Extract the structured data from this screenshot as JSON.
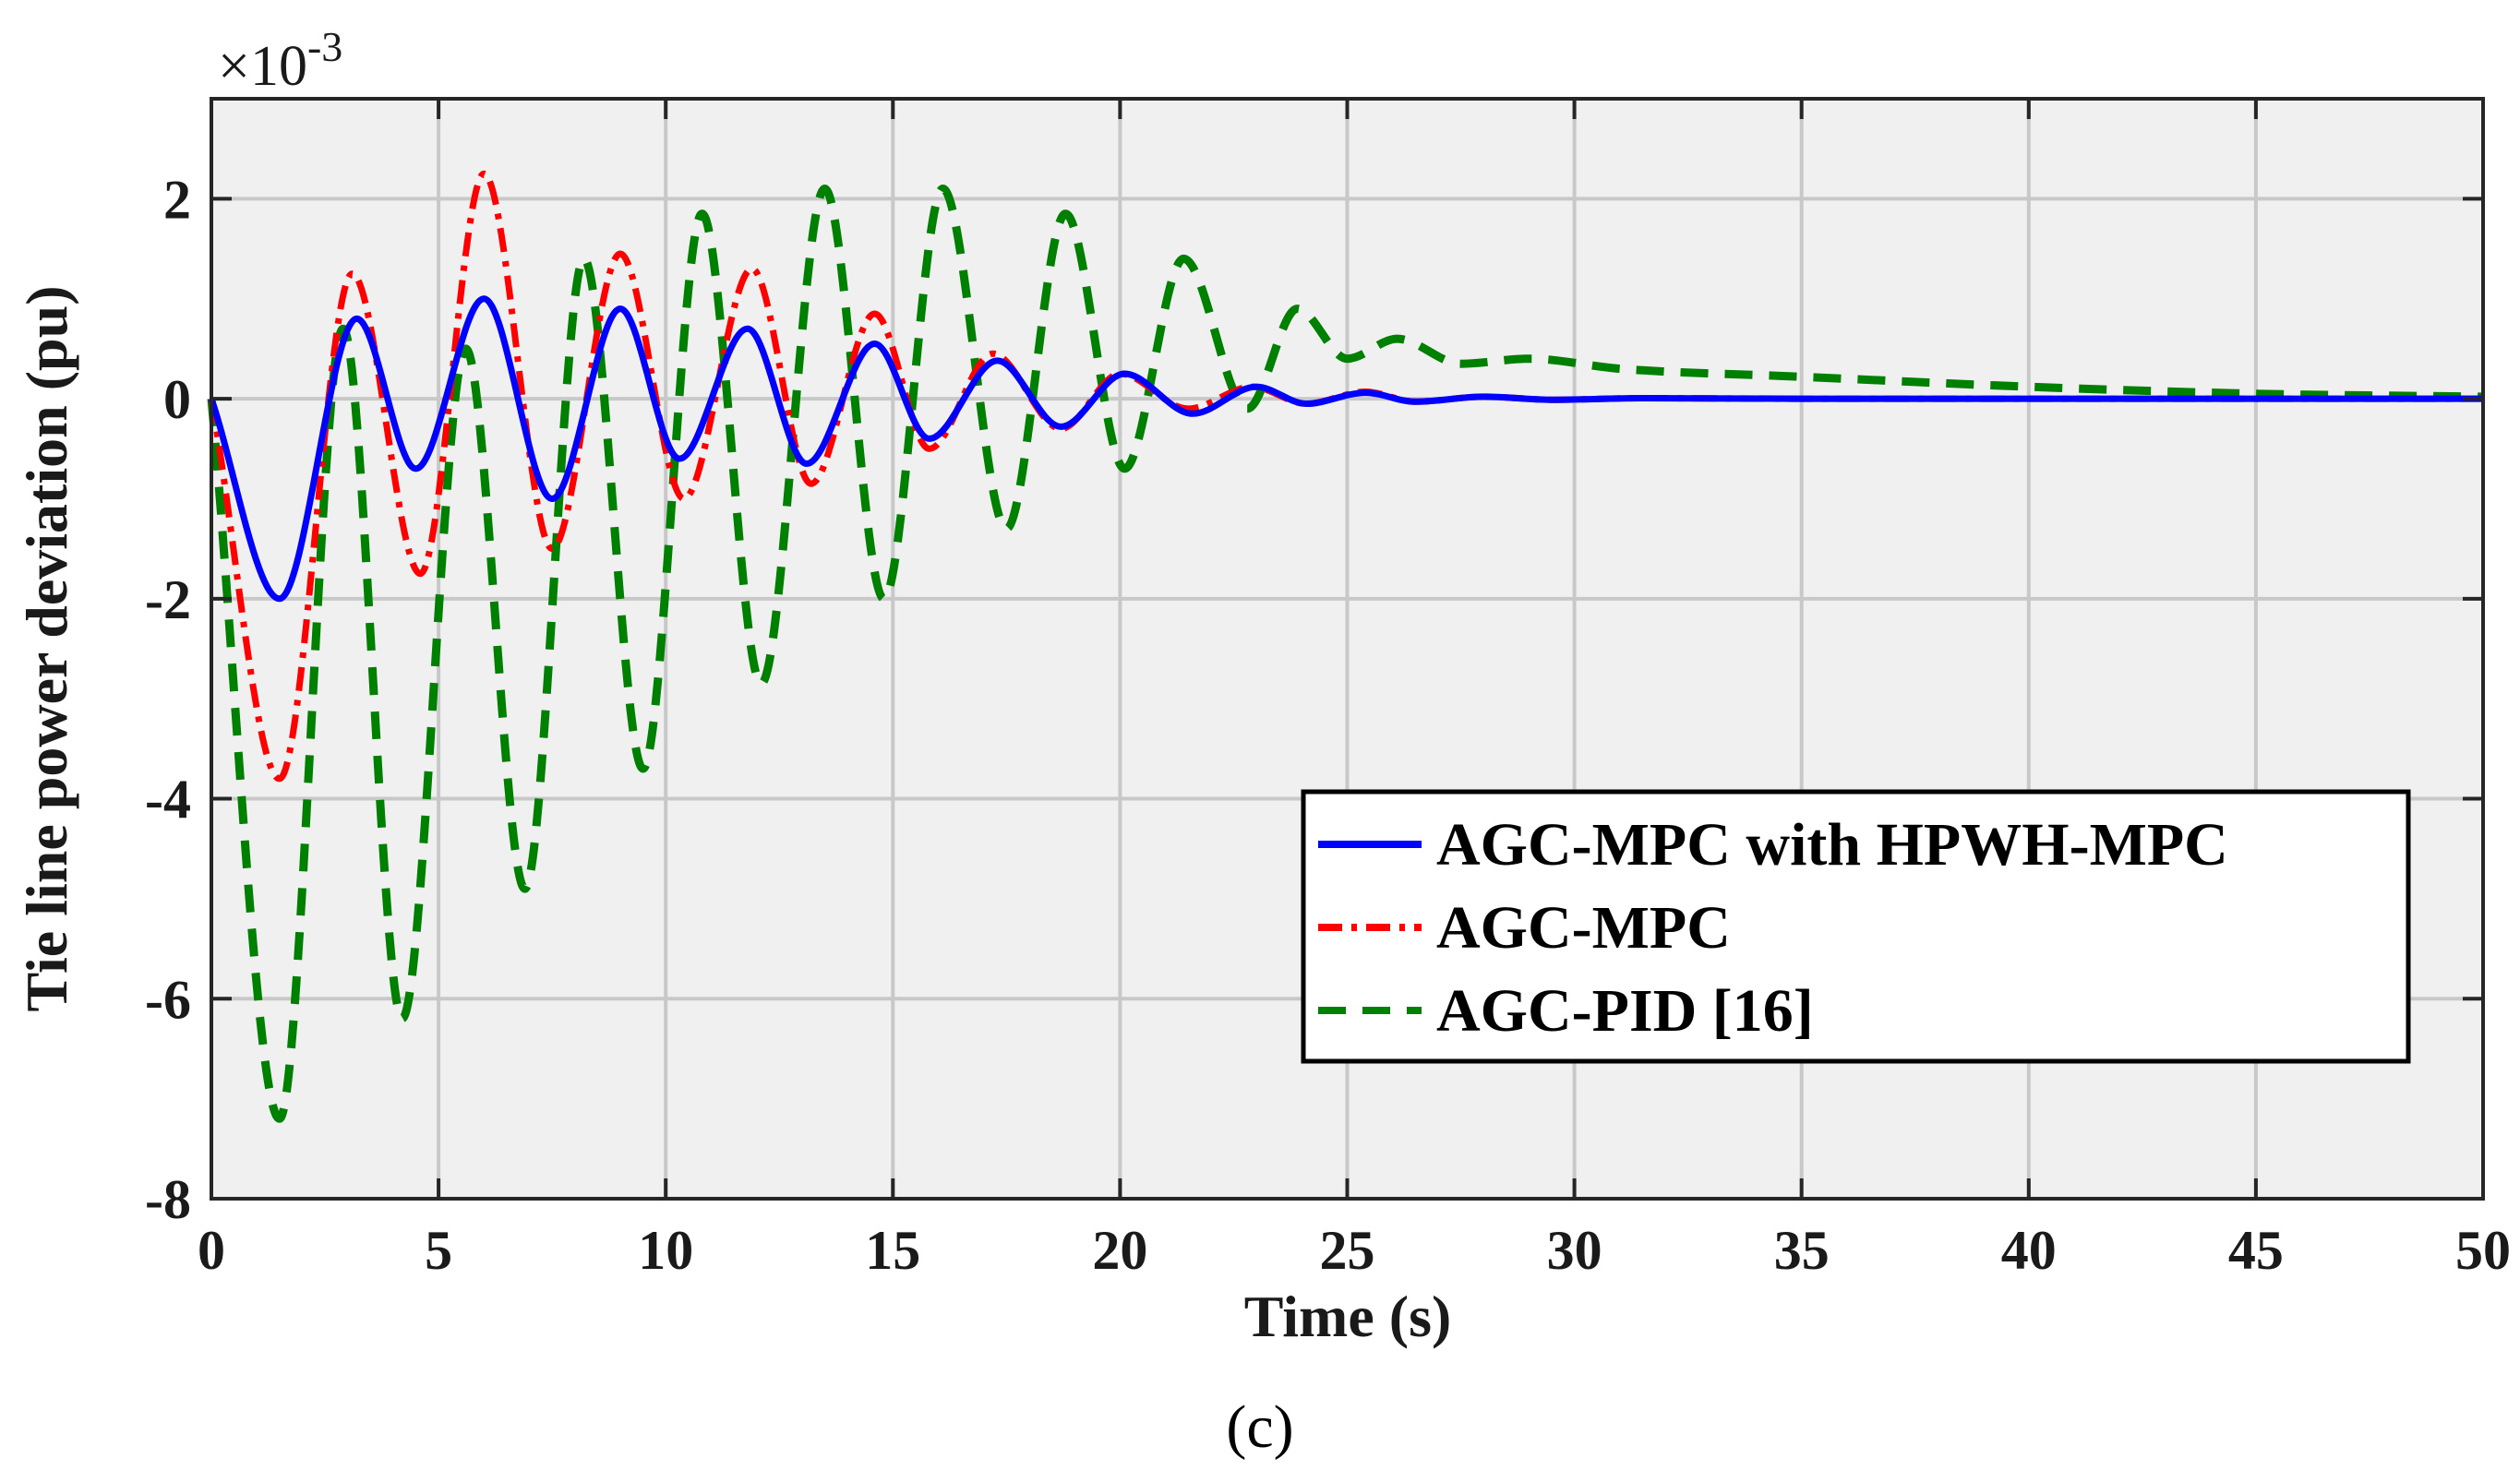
{
  "chart_data": {
    "type": "line",
    "title": "",
    "xlabel": "Time (s)",
    "ylabel": "Tie line power deviation (pu)",
    "xlim": [
      0,
      50
    ],
    "ylim": [
      -8,
      3
    ],
    "exponent_label": "×10^-3",
    "exponent_base": "×10",
    "exponent_power": "-3",
    "xticks": [
      0,
      5,
      10,
      15,
      20,
      25,
      30,
      35,
      40,
      45,
      50
    ],
    "yticks": [
      -8,
      -6,
      -4,
      -2,
      0,
      2
    ],
    "xtick_labels": [
      "0",
      "5",
      "10",
      "15",
      "20",
      "25",
      "30",
      "35",
      "40",
      "45",
      "50"
    ],
    "ytick_labels": [
      "-8",
      "-6",
      "-4",
      "-2",
      "0",
      "2"
    ],
    "grid": true,
    "legend_position": "lower-right",
    "series": [
      {
        "name": "AGC-MPC with HPWH-MPC",
        "color": "#0000ff",
        "style": "solid",
        "x": [
          0,
          1.5,
          3.2,
          4.5,
          6.0,
          7.5,
          9.0,
          10.3,
          11.8,
          13.1,
          14.6,
          15.8,
          17.3,
          18.7,
          20.1,
          21.6,
          23.0,
          24.1,
          25.4,
          26.5,
          28.0,
          29.5,
          31.5,
          35,
          40,
          45,
          50
        ],
        "y": [
          0,
          -2.0,
          0.8,
          -0.7,
          1.0,
          -1.0,
          0.9,
          -0.6,
          0.7,
          -0.65,
          0.55,
          -0.4,
          0.38,
          -0.28,
          0.25,
          -0.15,
          0.12,
          -0.05,
          0.06,
          -0.03,
          0.02,
          -0.01,
          0.005,
          0,
          0,
          0,
          0
        ]
      },
      {
        "name": "AGC-MPC",
        "color": "#ff0000",
        "style": "dashdot",
        "x": [
          0,
          1.5,
          3.1,
          4.6,
          6.0,
          7.5,
          9.0,
          10.4,
          11.9,
          13.2,
          14.6,
          15.8,
          17.2,
          18.7,
          20.0,
          21.5,
          22.9,
          24.1,
          25.4,
          26.5,
          28.0,
          29.5,
          31.5,
          35,
          40,
          45,
          50
        ],
        "y": [
          0,
          -3.8,
          1.25,
          -1.75,
          2.25,
          -1.5,
          1.45,
          -1.0,
          1.3,
          -0.85,
          0.85,
          -0.5,
          0.45,
          -0.3,
          0.25,
          -0.1,
          0.12,
          -0.05,
          0.07,
          -0.03,
          0.02,
          -0.01,
          0.005,
          0,
          0,
          0,
          0
        ]
      },
      {
        "name": "AGC-PID [16]",
        "color": "#008000",
        "style": "dashed",
        "x": [
          0,
          1.5,
          2.9,
          4.2,
          5.6,
          6.9,
          8.2,
          9.5,
          10.8,
          12.1,
          13.5,
          14.8,
          16.1,
          17.5,
          18.8,
          20.1,
          21.4,
          22.8,
          23.9,
          25.0,
          26.1,
          27.5,
          29.0,
          31.0,
          35,
          40,
          45,
          50
        ],
        "y": [
          0,
          -7.2,
          0.7,
          -6.2,
          0.5,
          -4.9,
          1.4,
          -3.7,
          1.85,
          -2.85,
          2.1,
          -2.0,
          2.1,
          -1.3,
          1.85,
          -0.7,
          1.4,
          -0.1,
          0.9,
          0.4,
          0.6,
          0.35,
          0.4,
          0.3,
          0.22,
          0.12,
          0.05,
          0.02
        ]
      }
    ]
  },
  "caption": "(c)"
}
